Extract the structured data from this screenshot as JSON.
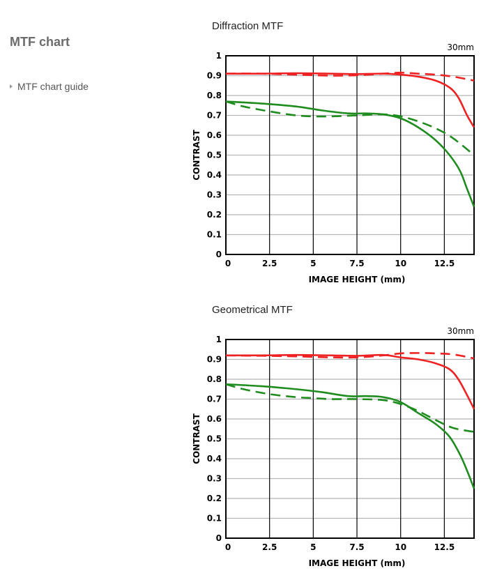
{
  "sidebar": {
    "title": "MTF chart",
    "link_label": "MTF chart guide"
  },
  "colors": {
    "red": "#ee2222",
    "green": "#1e8c1e",
    "grid_minor": "#b5b5b5",
    "grid_major": "#000000"
  },
  "chart_data": [
    {
      "type": "line",
      "title": "Diffraction MTF",
      "annotation": "30mm",
      "xlabel": "IMAGE HEIGHT (mm)",
      "ylabel": "CONTRAST",
      "xlim": [
        0,
        14.2
      ],
      "ylim": [
        0,
        1
      ],
      "xticks": [
        0,
        2.5,
        5,
        7.5,
        10,
        12.5
      ],
      "xtick_labels": [
        "0",
        "2.5",
        "5",
        "7.5",
        "10",
        "12.5"
      ],
      "yticks": [
        0,
        0.1,
        0.2,
        0.3,
        0.4,
        0.5,
        0.6,
        0.7,
        0.8,
        0.9,
        1
      ],
      "ytick_labels": [
        "0",
        "0.1",
        "0.2",
        "0.3",
        "0.4",
        "0.5",
        "0.6",
        "0.7",
        "0.8",
        "0.9",
        "1"
      ],
      "grid": true,
      "series": [
        {
          "color": "red",
          "dash": false,
          "x": [
            0,
            2,
            4,
            6,
            7.5,
            9,
            10,
            11,
            12,
            12.8,
            13.3,
            13.8,
            14.2
          ],
          "y": [
            0.91,
            0.91,
            0.912,
            0.91,
            0.908,
            0.91,
            0.905,
            0.895,
            0.875,
            0.84,
            0.79,
            0.7,
            0.64
          ]
        },
        {
          "color": "red",
          "dash": true,
          "x": [
            0,
            2,
            4,
            6,
            7.5,
            9,
            10,
            11,
            12,
            13,
            14.2
          ],
          "y": [
            0.91,
            0.91,
            0.905,
            0.9,
            0.902,
            0.91,
            0.915,
            0.91,
            0.905,
            0.895,
            0.875
          ]
        },
        {
          "color": "green",
          "dash": false,
          "x": [
            0,
            2,
            4,
            5.5,
            7,
            8,
            9,
            10,
            11,
            12,
            12.8,
            13.4,
            13.8,
            14.2
          ],
          "y": [
            0.77,
            0.76,
            0.745,
            0.725,
            0.71,
            0.71,
            0.705,
            0.685,
            0.64,
            0.575,
            0.5,
            0.42,
            0.33,
            0.24
          ]
        },
        {
          "color": "green",
          "dash": true,
          "x": [
            0,
            1,
            2.5,
            4,
            5,
            6,
            7.5,
            9,
            10,
            11,
            12,
            13,
            14.2
          ],
          "y": [
            0.77,
            0.745,
            0.72,
            0.7,
            0.695,
            0.695,
            0.7,
            0.705,
            0.695,
            0.67,
            0.635,
            0.585,
            0.5
          ]
        }
      ]
    },
    {
      "type": "line",
      "title": "Geometrical MTF",
      "annotation": "30mm",
      "xlabel": "IMAGE HEIGHT (mm)",
      "ylabel": "CONTRAST",
      "xlim": [
        0,
        14.2
      ],
      "ylim": [
        0,
        1
      ],
      "xticks": [
        0,
        2.5,
        5,
        7.5,
        10,
        12.5
      ],
      "xtick_labels": [
        "0",
        "2.5",
        "5",
        "7.5",
        "10",
        "12.5"
      ],
      "yticks": [
        0,
        0.1,
        0.2,
        0.3,
        0.4,
        0.5,
        0.6,
        0.7,
        0.8,
        0.9,
        1
      ],
      "ytick_labels": [
        "0",
        "0.1",
        "0.2",
        "0.3",
        "0.4",
        "0.5",
        "0.6",
        "0.7",
        "0.8",
        "0.9",
        "1"
      ],
      "grid": true,
      "series": [
        {
          "color": "red",
          "dash": false,
          "x": [
            0,
            2,
            4,
            6,
            7.5,
            9,
            10,
            11,
            12,
            12.8,
            13.3,
            13.8,
            14.2
          ],
          "y": [
            0.92,
            0.92,
            0.922,
            0.92,
            0.918,
            0.922,
            0.91,
            0.9,
            0.88,
            0.85,
            0.8,
            0.72,
            0.65
          ]
        },
        {
          "color": "red",
          "dash": true,
          "x": [
            0,
            2,
            4,
            6,
            7.5,
            9,
            10,
            11,
            12,
            13,
            14.2
          ],
          "y": [
            0.92,
            0.918,
            0.915,
            0.91,
            0.91,
            0.92,
            0.93,
            0.932,
            0.93,
            0.925,
            0.905
          ]
        },
        {
          "color": "green",
          "dash": false,
          "x": [
            0,
            2,
            4,
            5.5,
            7,
            8,
            9,
            10,
            11,
            12,
            12.8,
            13.4,
            13.8,
            14.2
          ],
          "y": [
            0.775,
            0.765,
            0.75,
            0.735,
            0.715,
            0.715,
            0.71,
            0.685,
            0.63,
            0.575,
            0.51,
            0.42,
            0.34,
            0.25
          ]
        },
        {
          "color": "green",
          "dash": true,
          "x": [
            0,
            1,
            2.5,
            4,
            5,
            6,
            7.5,
            9,
            10,
            11,
            12,
            13,
            14.2
          ],
          "y": [
            0.775,
            0.75,
            0.725,
            0.71,
            0.705,
            0.7,
            0.7,
            0.695,
            0.675,
            0.64,
            0.595,
            0.555,
            0.535
          ]
        }
      ]
    }
  ]
}
